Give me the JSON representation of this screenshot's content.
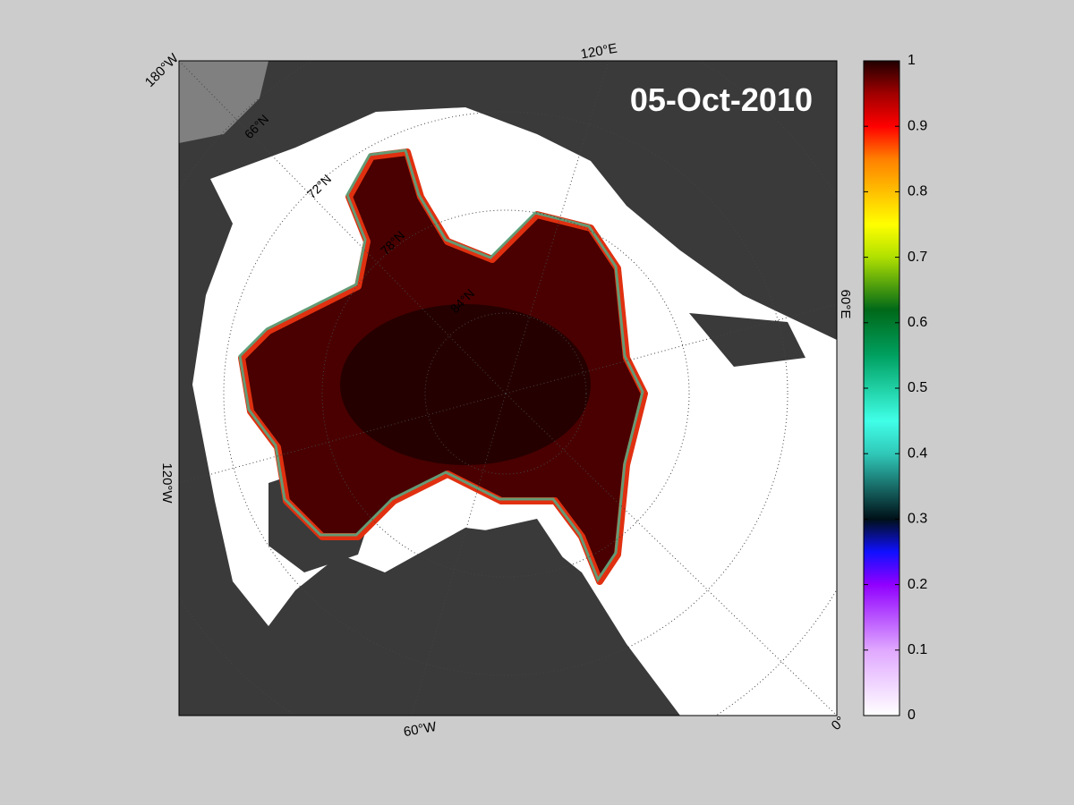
{
  "map": {
    "date": "05-Oct-2010",
    "longitude_labels": [
      "180°W",
      "120°E",
      "60°E",
      "0°",
      "60°W",
      "120°W"
    ],
    "latitude_labels": [
      "66°N",
      "72°N",
      "78°N",
      "84°N"
    ]
  },
  "colorbar": {
    "lim": [
      0,
      1
    ],
    "ticks": [
      0,
      0.1,
      0.2,
      0.3,
      0.4,
      0.5,
      0.6,
      0.7,
      0.8,
      0.9,
      1
    ]
  }
}
